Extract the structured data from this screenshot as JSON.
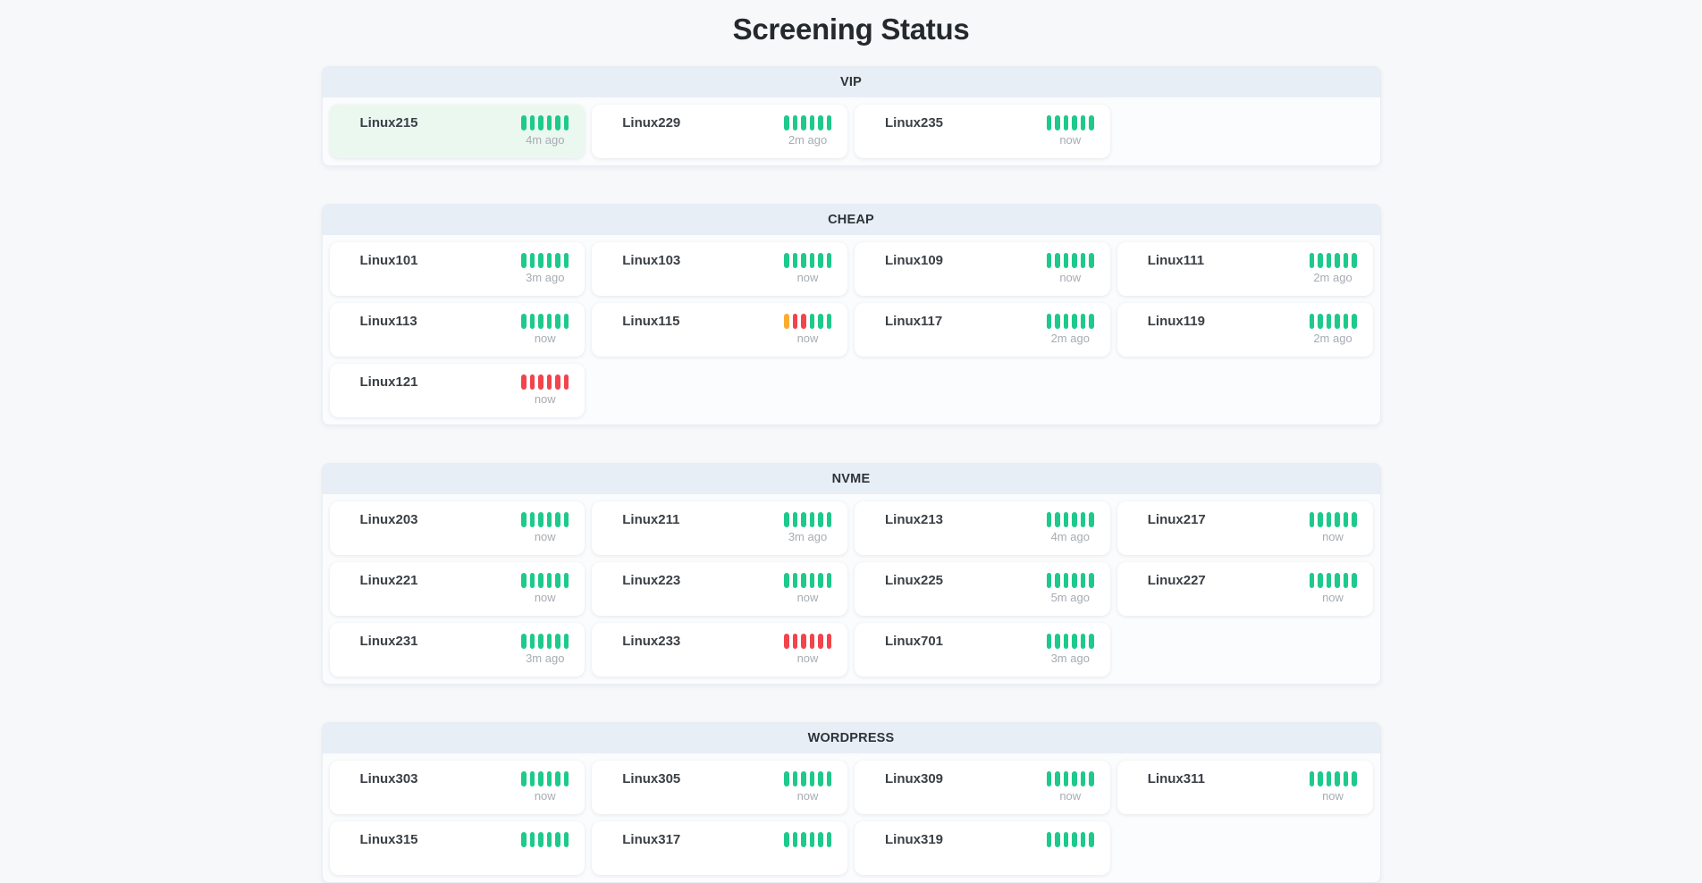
{
  "title": "Screening Status",
  "colors": {
    "ok": "#1ec98c",
    "warning": "#fdab30",
    "danger": "#f2444d",
    "section_header_bg": "#e8eef6",
    "highlight_card_bg": "#ebf8f0"
  },
  "sections": [
    {
      "name": "VIP",
      "servers": [
        {
          "name": "Linux215",
          "time": "4m ago",
          "highlight": true,
          "bars": [
            "ok",
            "ok",
            "ok",
            "ok",
            "ok",
            "ok"
          ]
        },
        {
          "name": "Linux229",
          "time": "2m ago",
          "highlight": false,
          "bars": [
            "ok",
            "ok",
            "ok",
            "ok",
            "ok",
            "ok"
          ]
        },
        {
          "name": "Linux235",
          "time": "now",
          "highlight": false,
          "bars": [
            "ok",
            "ok",
            "ok",
            "ok",
            "ok",
            "ok"
          ]
        }
      ]
    },
    {
      "name": "CHEAP",
      "servers": [
        {
          "name": "Linux101",
          "time": "3m ago",
          "highlight": false,
          "bars": [
            "ok",
            "ok",
            "ok",
            "ok",
            "ok",
            "ok"
          ]
        },
        {
          "name": "Linux103",
          "time": "now",
          "highlight": false,
          "bars": [
            "ok",
            "ok",
            "ok",
            "ok",
            "ok",
            "ok"
          ]
        },
        {
          "name": "Linux109",
          "time": "now",
          "highlight": false,
          "bars": [
            "ok",
            "ok",
            "ok",
            "ok",
            "ok",
            "ok"
          ]
        },
        {
          "name": "Linux111",
          "time": "2m ago",
          "highlight": false,
          "bars": [
            "ok",
            "ok",
            "ok",
            "ok",
            "ok",
            "ok"
          ]
        },
        {
          "name": "Linux113",
          "time": "now",
          "highlight": false,
          "bars": [
            "ok",
            "ok",
            "ok",
            "ok",
            "ok",
            "ok"
          ]
        },
        {
          "name": "Linux115",
          "time": "now",
          "highlight": false,
          "bars": [
            "warning",
            "danger",
            "danger",
            "ok",
            "ok",
            "ok"
          ]
        },
        {
          "name": "Linux117",
          "time": "2m ago",
          "highlight": false,
          "bars": [
            "ok",
            "ok",
            "ok",
            "ok",
            "ok",
            "ok"
          ]
        },
        {
          "name": "Linux119",
          "time": "2m ago",
          "highlight": false,
          "bars": [
            "ok",
            "ok",
            "ok",
            "ok",
            "ok",
            "ok"
          ]
        },
        {
          "name": "Linux121",
          "time": "now",
          "highlight": false,
          "bars": [
            "danger",
            "danger",
            "danger",
            "danger",
            "danger",
            "danger"
          ]
        }
      ]
    },
    {
      "name": "NVME",
      "servers": [
        {
          "name": "Linux203",
          "time": "now",
          "highlight": false,
          "bars": [
            "ok",
            "ok",
            "ok",
            "ok",
            "ok",
            "ok"
          ]
        },
        {
          "name": "Linux211",
          "time": "3m ago",
          "highlight": false,
          "bars": [
            "ok",
            "ok",
            "ok",
            "ok",
            "ok",
            "ok"
          ]
        },
        {
          "name": "Linux213",
          "time": "4m ago",
          "highlight": false,
          "bars": [
            "ok",
            "ok",
            "ok",
            "ok",
            "ok",
            "ok"
          ]
        },
        {
          "name": "Linux217",
          "time": "now",
          "highlight": false,
          "bars": [
            "ok",
            "ok",
            "ok",
            "ok",
            "ok",
            "ok"
          ]
        },
        {
          "name": "Linux221",
          "time": "now",
          "highlight": false,
          "bars": [
            "ok",
            "ok",
            "ok",
            "ok",
            "ok",
            "ok"
          ]
        },
        {
          "name": "Linux223",
          "time": "now",
          "highlight": false,
          "bars": [
            "ok",
            "ok",
            "ok",
            "ok",
            "ok",
            "ok"
          ]
        },
        {
          "name": "Linux225",
          "time": "5m ago",
          "highlight": false,
          "bars": [
            "ok",
            "ok",
            "ok",
            "ok",
            "ok",
            "ok"
          ]
        },
        {
          "name": "Linux227",
          "time": "now",
          "highlight": false,
          "bars": [
            "ok",
            "ok",
            "ok",
            "ok",
            "ok",
            "ok"
          ]
        },
        {
          "name": "Linux231",
          "time": "3m ago",
          "highlight": false,
          "bars": [
            "ok",
            "ok",
            "ok",
            "ok",
            "ok",
            "ok"
          ]
        },
        {
          "name": "Linux233",
          "time": "now",
          "highlight": false,
          "bars": [
            "danger",
            "danger",
            "danger",
            "danger",
            "danger",
            "danger"
          ]
        },
        {
          "name": "Linux701",
          "time": "3m ago",
          "highlight": false,
          "bars": [
            "ok",
            "ok",
            "ok",
            "ok",
            "ok",
            "ok"
          ]
        }
      ]
    },
    {
      "name": "WORDPRESS",
      "servers": [
        {
          "name": "Linux303",
          "time": "now",
          "highlight": false,
          "bars": [
            "ok",
            "ok",
            "ok",
            "ok",
            "ok",
            "ok"
          ]
        },
        {
          "name": "Linux305",
          "time": "now",
          "highlight": false,
          "bars": [
            "ok",
            "ok",
            "ok",
            "ok",
            "ok",
            "ok"
          ]
        },
        {
          "name": "Linux309",
          "time": "now",
          "highlight": false,
          "bars": [
            "ok",
            "ok",
            "ok",
            "ok",
            "ok",
            "ok"
          ]
        },
        {
          "name": "Linux311",
          "time": "now",
          "highlight": false,
          "bars": [
            "ok",
            "ok",
            "ok",
            "ok",
            "ok",
            "ok"
          ]
        },
        {
          "name": "Linux315",
          "time": "",
          "highlight": false,
          "bars": [
            "ok",
            "ok",
            "ok",
            "ok",
            "ok",
            "ok"
          ]
        },
        {
          "name": "Linux317",
          "time": "",
          "highlight": false,
          "bars": [
            "ok",
            "ok",
            "ok",
            "ok",
            "ok",
            "ok"
          ]
        },
        {
          "name": "Linux319",
          "time": "",
          "highlight": false,
          "bars": [
            "ok",
            "ok",
            "ok",
            "ok",
            "ok",
            "ok"
          ]
        }
      ]
    }
  ]
}
